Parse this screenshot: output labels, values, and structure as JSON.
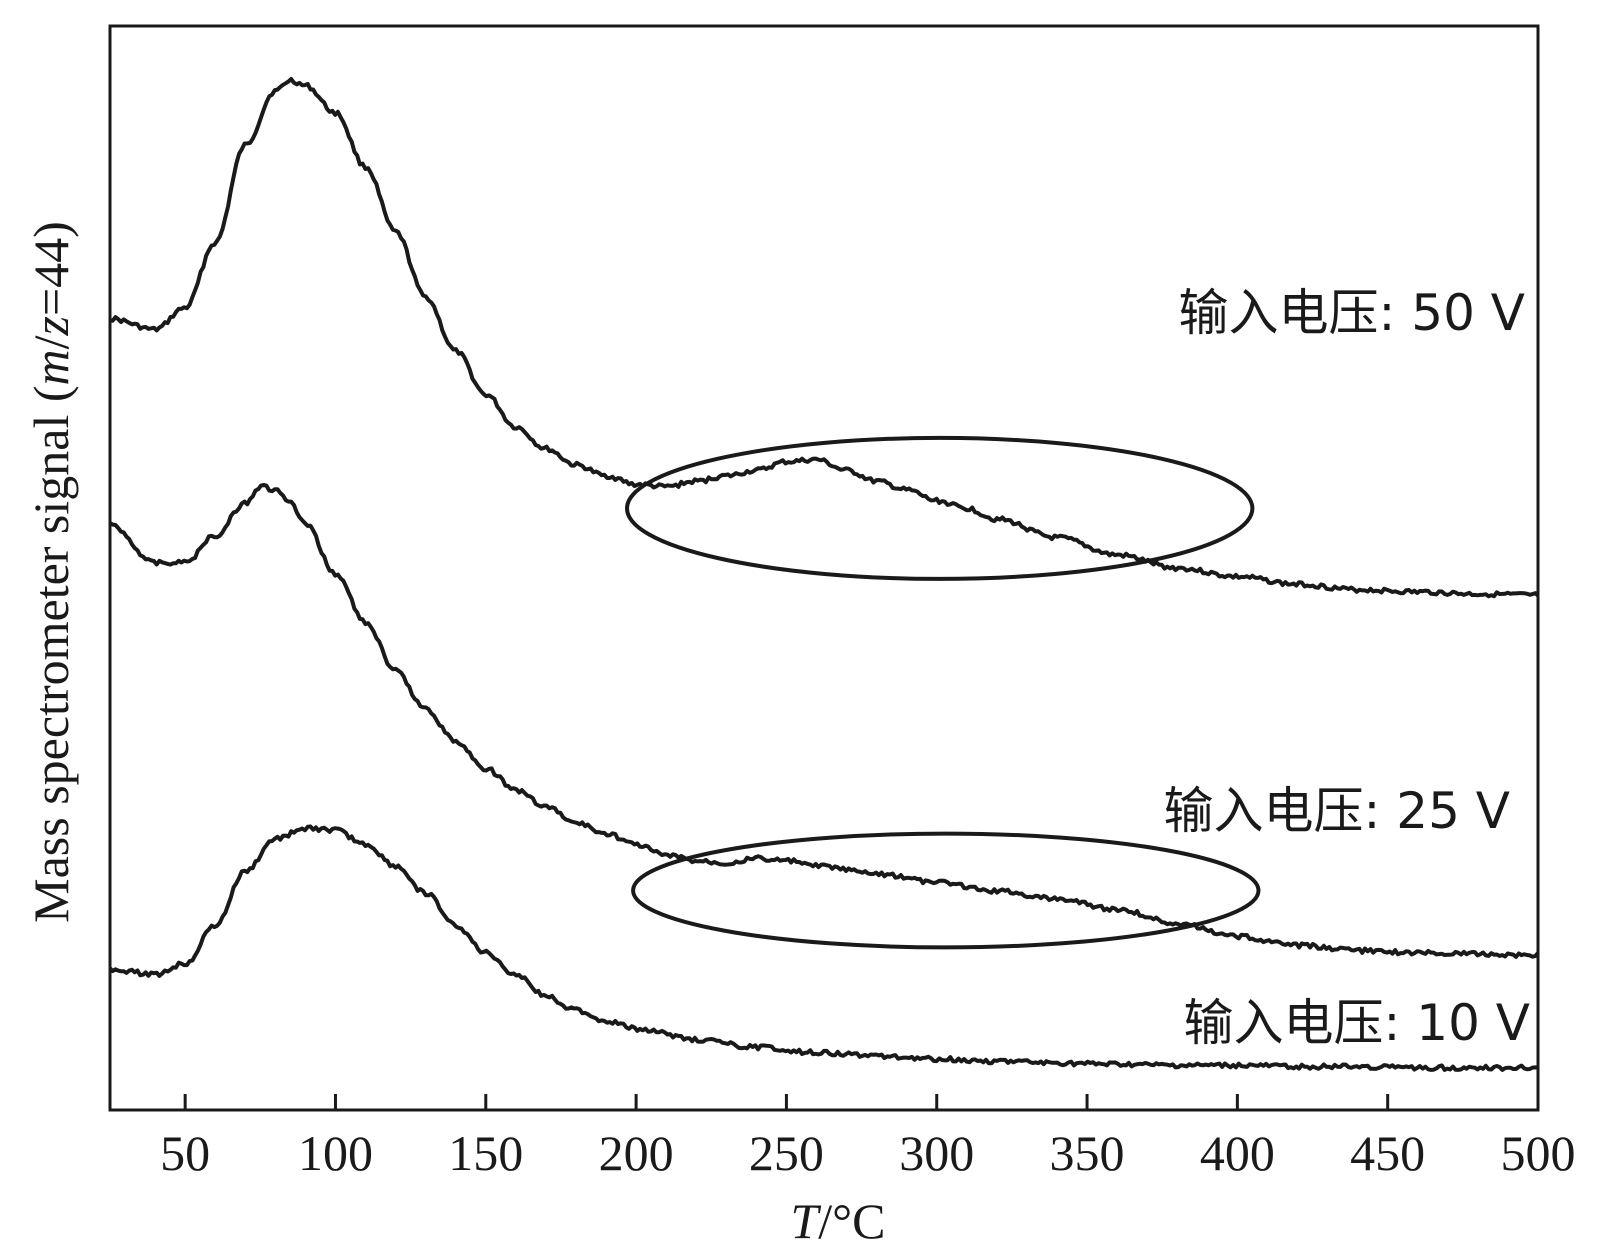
{
  "chart_data": {
    "type": "line",
    "xlabel": "T/°C",
    "xlabel_parts": {
      "var": "T",
      "unit": "/°C"
    },
    "ylabel": "Mass spectrometer signal (m/z=44)",
    "ylabel_parts": {
      "prefix": "Mass spectrometer signal (",
      "m": "m",
      "slash": "/",
      "z": "z",
      "suffix": "=44)"
    },
    "xlim": [
      25,
      500
    ],
    "ylim": [
      0,
      10
    ],
    "x_ticks": [
      50,
      100,
      150,
      200,
      250,
      300,
      350,
      400,
      450,
      500
    ],
    "grid": false,
    "legend": "none",
    "line_color": "#1a1a1a",
    "series": [
      {
        "name": "输入电压: 50 V",
        "x": [
          25,
          40,
          50,
          60,
          70,
          80,
          85,
          90,
          100,
          110,
          120,
          130,
          140,
          150,
          160,
          170,
          180,
          190,
          200,
          210,
          220,
          230,
          240,
          250,
          260,
          270,
          280,
          290,
          300,
          310,
          320,
          340,
          360,
          380,
          400,
          420,
          440,
          460,
          480,
          500
        ],
        "y": [
          7.3,
          7.2,
          7.4,
          8.0,
          8.9,
          9.4,
          9.5,
          9.45,
          9.2,
          8.7,
          8.1,
          7.5,
          7.0,
          6.6,
          6.3,
          6.1,
          5.95,
          5.85,
          5.77,
          5.75,
          5.8,
          5.85,
          5.9,
          5.98,
          6.0,
          5.9,
          5.8,
          5.72,
          5.62,
          5.55,
          5.45,
          5.28,
          5.12,
          5.0,
          4.92,
          4.85,
          4.8,
          4.78,
          4.76,
          4.75
        ]
      },
      {
        "name": "输入电压: 25 V",
        "x": [
          25,
          40,
          50,
          60,
          70,
          75,
          80,
          85,
          90,
          100,
          110,
          120,
          130,
          140,
          150,
          160,
          170,
          180,
          190,
          200,
          210,
          220,
          230,
          240,
          250,
          260,
          280,
          300,
          320,
          340,
          360,
          380,
          400,
          420,
          440,
          460,
          480,
          500
        ],
        "y": [
          5.4,
          5.05,
          5.05,
          5.3,
          5.6,
          5.75,
          5.72,
          5.6,
          5.4,
          4.95,
          4.5,
          4.05,
          3.7,
          3.4,
          3.15,
          2.95,
          2.8,
          2.65,
          2.55,
          2.45,
          2.35,
          2.3,
          2.28,
          2.32,
          2.3,
          2.25,
          2.18,
          2.1,
          2.02,
          1.95,
          1.85,
          1.72,
          1.6,
          1.52,
          1.47,
          1.45,
          1.44,
          1.43
        ]
      },
      {
        "name": "输入电压: 10 V",
        "x": [
          25,
          40,
          50,
          60,
          70,
          80,
          90,
          100,
          110,
          120,
          130,
          140,
          150,
          160,
          170,
          180,
          190,
          200,
          220,
          240,
          260,
          280,
          300,
          320,
          340,
          360,
          380,
          400,
          420,
          440,
          460,
          480,
          500
        ],
        "y": [
          1.3,
          1.25,
          1.35,
          1.7,
          2.2,
          2.5,
          2.6,
          2.58,
          2.45,
          2.25,
          2.0,
          1.7,
          1.45,
          1.25,
          1.05,
          0.92,
          0.82,
          0.75,
          0.65,
          0.58,
          0.53,
          0.5,
          0.47,
          0.45,
          0.43,
          0.42,
          0.41,
          0.41,
          0.4,
          0.4,
          0.39,
          0.39,
          0.39
        ]
      }
    ],
    "annotations": [
      {
        "type": "ellipse",
        "series": "输入电压: 50 V",
        "x_range": [
          197,
          405
        ],
        "y_range": [
          4.9,
          6.2
        ]
      },
      {
        "type": "ellipse",
        "series": "输入电压: 25 V",
        "x_range": [
          199,
          407
        ],
        "y_range": [
          1.5,
          2.55
        ]
      }
    ]
  }
}
